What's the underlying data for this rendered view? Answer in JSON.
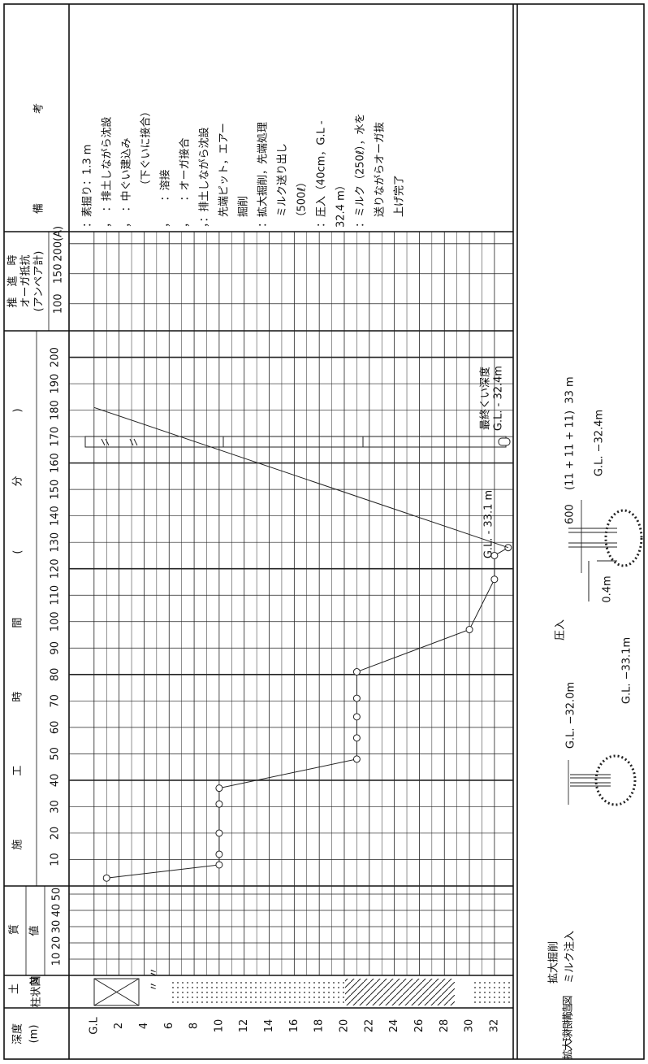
{
  "remarks_header": "備考",
  "remarks": [
    "：素掘り：1.3 m",
    "，　：排土しながら沈設",
    "，　：中ぐい建込み",
    "　　　　（下ぐいに接合）",
    "，　　：溶接",
    "，　　：オーガ接合",
    "，：排土しながら沈設",
    "　先端ピット，エアー",
    "　掘削",
    "：拡大掘削，先端処理",
    "　ミルク送り出し",
    "　（500ℓ）",
    "：圧入（40cm，G.L -",
    "32.4 m）",
    "：ミルク（250ℓ），水を",
    "　送りながらオーガ抜",
    "　上げ完了"
  ],
  "push_header": [
    "推　進　時",
    "オーガ抵抗",
    "(アンペア計)"
  ],
  "chart_data": {
    "type": "line",
    "y_label": "施工時間(分)",
    "ylim": [
      0,
      210
    ],
    "yticks": [
      10,
      20,
      30,
      40,
      50,
      60,
      70,
      80,
      90,
      100,
      110,
      120,
      130,
      140,
      150,
      160,
      170,
      180,
      190,
      200
    ],
    "x_label": [
      "深度",
      "(m)"
    ],
    "xlim": [
      -2,
      33.5
    ],
    "xticks": [
      {
        "value": 0,
        "label": "G.L"
      },
      2,
      4,
      6,
      8,
      10,
      12,
      14,
      16,
      18,
      20,
      22,
      24,
      26,
      28,
      30,
      32
    ],
    "x": [
      1,
      10,
      10,
      10,
      10,
      10,
      21,
      21,
      21,
      21,
      21,
      30,
      32,
      32,
      33.1
    ],
    "series": [
      {
        "color": "#222222",
        "values": [
          3,
          8,
          12,
          20,
          31,
          37,
          48,
          56,
          64,
          71,
          81,
          97,
          116,
          125,
          128
        ]
      }
    ],
    "extraction": {
      "x": [
        33.1,
        0
      ],
      "values": [
        128,
        181
      ]
    },
    "n_value": {
      "section": "土質",
      "label": "N値",
      "ylim": [
        0,
        55
      ],
      "yticks": [
        10,
        20,
        30,
        40,
        50
      ]
    },
    "push": {
      "ylim": [
        55,
        220
      ],
      "yticks": [
        100,
        150,
        {
          "value": 200,
          "label": "200(A)"
        }
      ]
    },
    "column_label": "柱状図",
    "annotations": {
      "final_depth_label": "最終くい深度",
      "final_depth": "G.L. - 32.4m",
      "bottom": "G.L. - 33.1 m"
    }
  },
  "bulb_header": "拡大球根構造図",
  "bulb": {
    "step1": [
      "拡大掘削",
      "ミルク注入"
    ],
    "gl_32_0": "G.L. −32.0m",
    "gl_33_1": "G.L. −33.1m",
    "step2": "圧入",
    "press": "0.4m",
    "gl_32_4": "G.L. −32.4m",
    "spec": "600　 (11 + 11 + 11)  33 m"
  }
}
